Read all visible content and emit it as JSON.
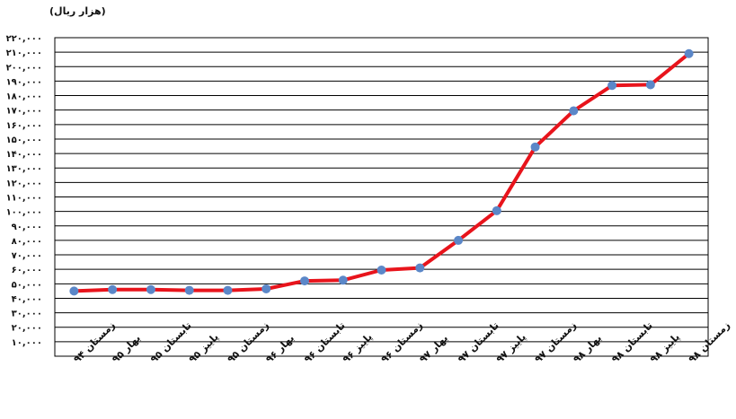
{
  "chart_data": {
    "type": "line",
    "unit_label": "(هزار ریال)",
    "title": "",
    "xlabel": "",
    "ylabel": "",
    "ylim": [
      0,
      220000
    ],
    "y_ticks": [
      220000,
      210000,
      200000,
      190000,
      180000,
      170000,
      160000,
      150000,
      140000,
      130000,
      120000,
      110000,
      100000,
      90000,
      80000,
      70000,
      60000,
      50000,
      40000,
      30000,
      20000,
      10000
    ],
    "y_tick_labels": [
      "۲۲۰,۰۰۰",
      "۲۱۰,۰۰۰",
      "۲۰۰,۰۰۰",
      "۱۹۰,۰۰۰",
      "۱۸۰,۰۰۰",
      "۱۷۰,۰۰۰",
      "۱۶۰,۰۰۰",
      "۱۵۰,۰۰۰",
      "۱۴۰,۰۰۰",
      "۱۳۰,۰۰۰",
      "۱۲۰,۰۰۰",
      "۱۱۰,۰۰۰",
      "۱۰۰,۰۰۰",
      "۹۰,۰۰۰",
      "۸۰,۰۰۰",
      "۷۰,۰۰۰",
      "۶۰,۰۰۰",
      "۵۰,۰۰۰",
      "۴۰,۰۰۰",
      "۳۰,۰۰۰",
      "۲۰,۰۰۰",
      "۱۰,۰۰۰"
    ],
    "categories": [
      "زمستان ۹۴",
      "بهار ۹۵",
      "تابستان ۹۵",
      "پاییز ۹۵",
      "زمستان ۹۵",
      "بهار ۹۶",
      "تابستان ۹۶",
      "پاییز ۹۶",
      "زمستان ۹۶",
      "بهار ۹۷",
      "تابستان ۹۷",
      "پاییز ۹۷",
      "زمستان ۹۷",
      "بهار ۹۸",
      "تابستان ۹۸",
      "پاییز ۹۸",
      "زمستان ۹۸"
    ],
    "series": [
      {
        "values": [
          45000,
          46000,
          46000,
          45500,
          45500,
          46500,
          52000,
          52500,
          59500,
          61000,
          80000,
          100500,
          144500,
          169500,
          187000,
          187500,
          209000
        ]
      }
    ],
    "grid": true,
    "legend": "none",
    "colors": {
      "line": "#e8141c",
      "marker": "#5b87c8",
      "grid": "#000000",
      "text": "#111111"
    }
  }
}
